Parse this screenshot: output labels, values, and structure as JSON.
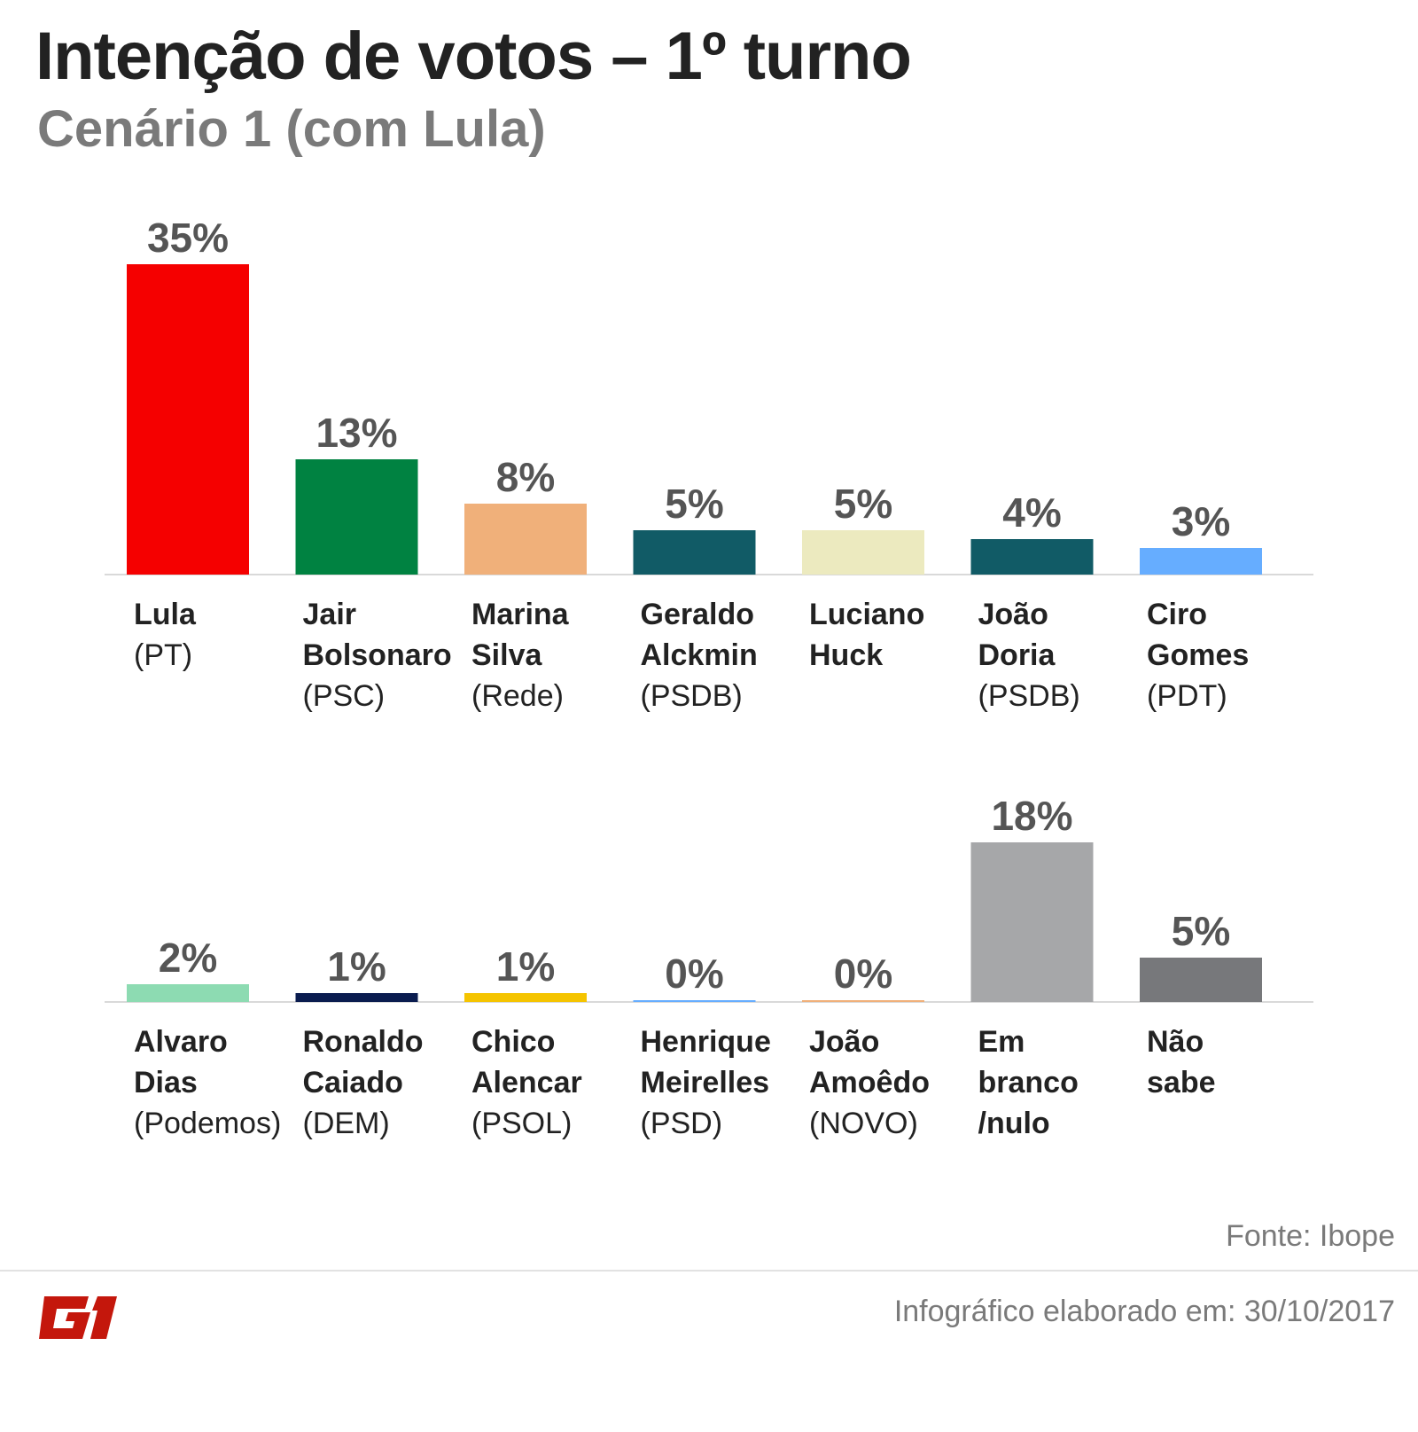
{
  "header": {
    "title": "Intenção de votos – 1º turno",
    "subtitle": "Cenário 1 (com Lula)"
  },
  "chart_data": {
    "type": "bar",
    "title": "Intenção de votos – 1º turno",
    "subtitle": "Cenário 1 (com Lula)",
    "unit": "%",
    "rows": [
      {
        "categories": [
          {
            "name": [
              "Lula"
            ],
            "party": "(PT)",
            "value": 35,
            "label": "35%",
            "color": "#f50000"
          },
          {
            "name": [
              "Jair",
              "Bolsonaro"
            ],
            "party": "(PSC)",
            "value": 13,
            "label": "13%",
            "color": "#008241"
          },
          {
            "name": [
              "Marina",
              "Silva"
            ],
            "party": "(Rede)",
            "value": 8,
            "label": "8%",
            "color": "#f0b07a"
          },
          {
            "name": [
              "Geraldo",
              "Alckmin"
            ],
            "party": "(PSDB)",
            "value": 5,
            "label": "5%",
            "color": "#115b66"
          },
          {
            "name": [
              "Luciano",
              "Huck"
            ],
            "party": "",
            "value": 5,
            "label": "5%",
            "color": "#eceabf"
          },
          {
            "name": [
              "João",
              "Doria"
            ],
            "party": "(PSDB)",
            "value": 4,
            "label": "4%",
            "color": "#115b66"
          },
          {
            "name": [
              "Ciro",
              "Gomes"
            ],
            "party": "(PDT)",
            "value": 3,
            "label": "3%",
            "color": "#66adff"
          }
        ]
      },
      {
        "categories": [
          {
            "name": [
              "Alvaro",
              "Dias"
            ],
            "party": "(Podemos)",
            "value": 2,
            "label": "2%",
            "color": "#8ddbb2"
          },
          {
            "name": [
              "Ronaldo",
              "Caiado"
            ],
            "party": "(DEM)",
            "value": 1,
            "label": "1%",
            "color": "#0a1c4f"
          },
          {
            "name": [
              "Chico",
              "Alencar"
            ],
            "party": "(PSOL)",
            "value": 1,
            "label": "1%",
            "color": "#f5c400"
          },
          {
            "name": [
              "Henrique",
              "Meirelles"
            ],
            "party": "(PSD)",
            "value": 0,
            "label": "0%",
            "color": "#66adff"
          },
          {
            "name": [
              "João",
              "Amoêdo"
            ],
            "party": "(NOVO)",
            "value": 0,
            "label": "0%",
            "color": "#f0b07a"
          },
          {
            "name": [
              "Em",
              "branco",
              "/nulo"
            ],
            "party": "",
            "value": 18,
            "label": "18%",
            "color": "#a6a7a9"
          },
          {
            "name": [
              "Não",
              "sabe"
            ],
            "party": "",
            "value": 5,
            "label": "5%",
            "color": "#77787b"
          }
        ]
      }
    ]
  },
  "footer": {
    "source": "Fonte: Ibope",
    "credit": "Infográfico elaborado em: 30/10/2017",
    "logo_text": "G1",
    "logo_color": "#c4170c"
  }
}
